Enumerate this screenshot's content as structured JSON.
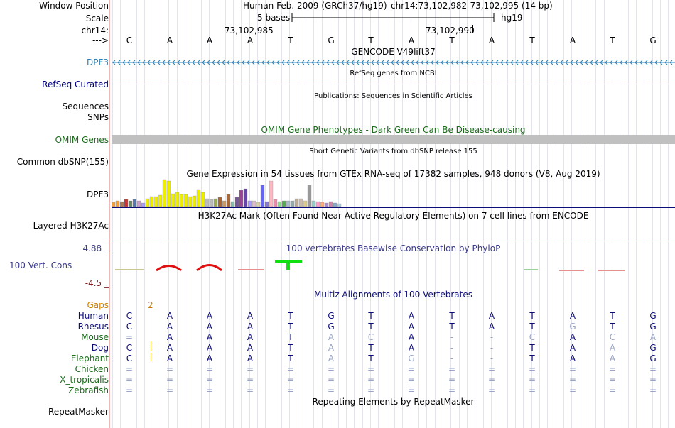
{
  "header": {
    "window_position_label": "Window Position",
    "scale_label": "Scale",
    "chrom_label": "chr14:",
    "strand_label": "--->",
    "assembly_text": "Human Feb. 2009 (GRCh37/hg19)",
    "position_text": "chr14:73,102,982-73,102,995 (14 bp)",
    "scale_text": "5 bases",
    "scale_db": "hg19",
    "coord1": "73,102,985",
    "coord2": "73,102,990",
    "bases": [
      "C",
      "A",
      "A",
      "A",
      "T",
      "G",
      "T",
      "A",
      "T",
      "A",
      "T",
      "A",
      "T",
      "G"
    ]
  },
  "tracks": {
    "gencode": {
      "title": "GENCODE V49lift37",
      "label": "DPF3",
      "color": "#2b80b8"
    },
    "refseq": {
      "title": "RefSeq genes from NCBI",
      "label": "RefSeq Curated",
      "color": "#0c0c78"
    },
    "publications": {
      "title": "Publications: Sequences in Scientific Articles",
      "label1": "Sequences",
      "label2": "SNPs"
    },
    "omim": {
      "title": "OMIM Gene Phenotypes - Dark Green Can Be Disease-causing",
      "label": "OMIM Genes",
      "bar_color": "#c0c0c0"
    },
    "dbsnp": {
      "title": "Short Genetic Variants from dbSNP release 155",
      "label": "Common dbSNP(155)"
    },
    "gtex": {
      "title": "Gene Expression in 54 tissues from GTEx RNA-seq of 17382 samples, 948 donors (V8, Aug 2019)",
      "label": "DPF3",
      "bars": [
        {
          "v": 0.15,
          "c": "#f59e3c"
        },
        {
          "v": 0.22,
          "c": "#f59e3c"
        },
        {
          "v": 0.18,
          "c": "#aa7a5a"
        },
        {
          "v": 0.25,
          "c": "#cc3333"
        },
        {
          "v": 0.22,
          "c": "#668866"
        },
        {
          "v": 0.25,
          "c": "#5577aa"
        },
        {
          "v": 0.2,
          "c": "#cc99cc"
        },
        {
          "v": 0.12,
          "c": "#aa99ff"
        },
        {
          "v": 0.28,
          "c": "#eeee00"
        },
        {
          "v": 0.38,
          "c": "#eeee00"
        },
        {
          "v": 0.38,
          "c": "#eeee00"
        },
        {
          "v": 0.42,
          "c": "#eeee00"
        },
        {
          "v": 1.0,
          "c": "#eeee00"
        },
        {
          "v": 0.95,
          "c": "#eeee00"
        },
        {
          "v": 0.48,
          "c": "#eeee00"
        },
        {
          "v": 0.52,
          "c": "#eeee00"
        },
        {
          "v": 0.45,
          "c": "#eeee00"
        },
        {
          "v": 0.45,
          "c": "#eeee00"
        },
        {
          "v": 0.38,
          "c": "#eeee00"
        },
        {
          "v": 0.4,
          "c": "#eeee00"
        },
        {
          "v": 0.62,
          "c": "#eeee00"
        },
        {
          "v": 0.52,
          "c": "#eeee00"
        },
        {
          "v": 0.28,
          "c": "#bbbbbb"
        },
        {
          "v": 0.25,
          "c": "#bbbbbb"
        },
        {
          "v": 0.3,
          "c": "#99aa55"
        },
        {
          "v": 0.35,
          "c": "#aa6633"
        },
        {
          "v": 0.2,
          "c": "#cc9966"
        },
        {
          "v": 0.45,
          "c": "#aa6633"
        },
        {
          "v": 0.18,
          "c": "#88bbaa"
        },
        {
          "v": 0.35,
          "c": "#775599"
        },
        {
          "v": 0.6,
          "c": "#994499"
        },
        {
          "v": 0.65,
          "c": "#6644aa"
        },
        {
          "v": 0.22,
          "c": "#aa99ff"
        },
        {
          "v": 0.2,
          "c": "#ddbbcc"
        },
        {
          "v": 0.15,
          "c": "#ddccaa"
        },
        {
          "v": 0.8,
          "c": "#6666ee"
        },
        {
          "v": 0.18,
          "c": "#8877cc"
        },
        {
          "v": 0.95,
          "c": "#ffb6c1"
        },
        {
          "v": 0.25,
          "c": "#ee88aa"
        },
        {
          "v": 0.18,
          "c": "#88dd88"
        },
        {
          "v": 0.2,
          "c": "#55aa55"
        },
        {
          "v": 0.22,
          "c": "#aabbcc"
        },
        {
          "v": 0.22,
          "c": "#99aaaa"
        },
        {
          "v": 0.3,
          "c": "#bbaa99"
        },
        {
          "v": 0.3,
          "c": "#ccbbaa"
        },
        {
          "v": 0.2,
          "c": "#ddcc88"
        },
        {
          "v": 0.78,
          "c": "#999999"
        },
        {
          "v": 0.22,
          "c": "#99cccc"
        },
        {
          "v": 0.18,
          "c": "#ff99cc"
        },
        {
          "v": 0.15,
          "c": "#ffaa77"
        },
        {
          "v": 0.12,
          "c": "#aa88cc"
        },
        {
          "v": 0.18,
          "c": "#cc88aa"
        },
        {
          "v": 0.12,
          "c": "#88aacc"
        },
        {
          "v": 0.1,
          "c": "#aaccdd"
        }
      ]
    },
    "h3k27ac": {
      "title": "H3K27Ac Mark (Often Found Near Active Regulatory Elements) on 7 cell lines from ENCODE",
      "label": "Layered H3K27Ac"
    },
    "phylop": {
      "title": "100 vertebrates Basewise Conservation by PhyloP",
      "label": "100 Vert. Cons",
      "max": "4.88 _",
      "min": "-4.5 _"
    },
    "multiz": {
      "title": "Multiz Alignments of 100 Vertebrates",
      "gaps_label": "Gaps",
      "gaps_value": "2",
      "rows": [
        {
          "name": "Human",
          "bases": [
            "C",
            "A",
            "A",
            "A",
            "T",
            "G",
            "T",
            "A",
            "T",
            "A",
            "T",
            "A",
            "T",
            "G"
          ],
          "dim": []
        },
        {
          "name": "Rhesus",
          "bases": [
            "C",
            "A",
            "A",
            "A",
            "T",
            "G",
            "T",
            "A",
            "T",
            "A",
            "T",
            "G",
            "T",
            "G"
          ],
          "dim": [
            11
          ]
        },
        {
          "name": "Mouse",
          "bases": [
            "=",
            "A",
            "A",
            "A",
            "T",
            "A",
            "C",
            "A",
            "-",
            "-",
            "C",
            "A",
            "C",
            "A"
          ],
          "dim": [
            0,
            5,
            6,
            8,
            9,
            10,
            12,
            13
          ]
        },
        {
          "name": "Dog",
          "bases": [
            "C",
            "A",
            "A",
            "A",
            "T",
            "A",
            "T",
            "A",
            "-",
            "-",
            "T",
            "A",
            "A",
            "G"
          ],
          "dim": [
            5,
            8,
            9,
            12
          ]
        },
        {
          "name": "Elephant",
          "bases": [
            "C",
            "A",
            "A",
            "A",
            "T",
            "A",
            "T",
            "G",
            "-",
            "-",
            "T",
            "A",
            "A",
            "G"
          ],
          "dim": [
            5,
            7,
            8,
            9,
            12
          ]
        },
        {
          "name": "Chicken",
          "bases": [
            "=",
            "=",
            "=",
            "=",
            "=",
            "=",
            "=",
            "=",
            "=",
            "=",
            "=",
            "=",
            "=",
            "="
          ],
          "dim": [
            0,
            1,
            2,
            3,
            4,
            5,
            6,
            7,
            8,
            9,
            10,
            11,
            12,
            13
          ]
        },
        {
          "name": "X_tropicalis",
          "bases": [
            "=",
            "=",
            "=",
            "=",
            "=",
            "=",
            "=",
            "=",
            "=",
            "=",
            "=",
            "=",
            "=",
            "="
          ],
          "dim": [
            0,
            1,
            2,
            3,
            4,
            5,
            6,
            7,
            8,
            9,
            10,
            11,
            12,
            13
          ]
        },
        {
          "name": "Zebrafish",
          "bases": [
            "=",
            "=",
            "=",
            "=",
            "=",
            "=",
            "=",
            "=",
            "=",
            "=",
            "=",
            "=",
            "=",
            "="
          ],
          "dim": [
            0,
            1,
            2,
            3,
            4,
            5,
            6,
            7,
            8,
            9,
            10,
            11,
            12,
            13
          ]
        }
      ]
    },
    "repeatmasker": {
      "title": "Repeating Elements by RepeatMasker",
      "label": "RepeatMasker"
    }
  }
}
